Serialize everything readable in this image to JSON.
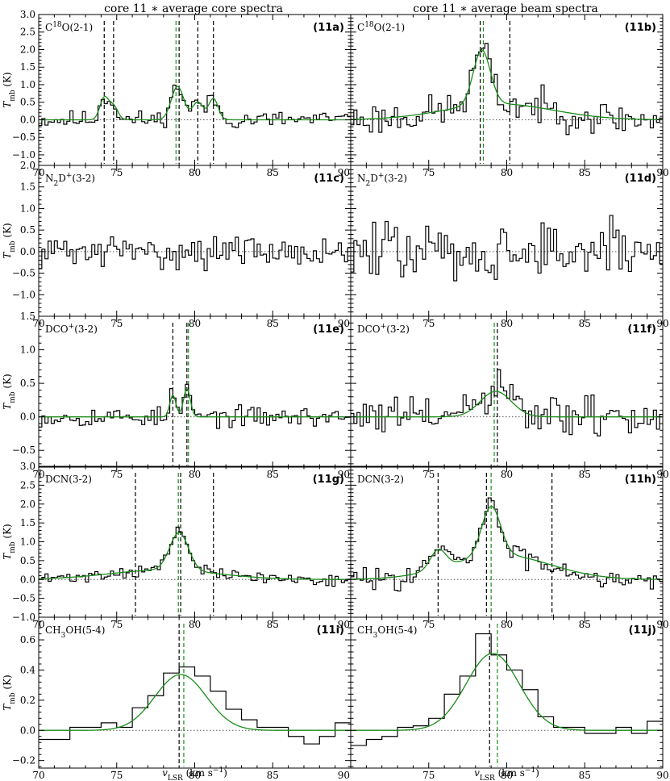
{
  "figure": {
    "column_titles": [
      "core 11 ∗  average core spectra",
      "core 11 ∗  average beam spectra"
    ],
    "ylabel_main": "T",
    "ylabel_sub": "mb",
    "ylabel_unit": " (K)",
    "xlabel_main": "v",
    "xlabel_sub": "LSR",
    "xlabel_unit": " (km s",
    "xlabel_sup": "−1",
    "xlabel_close": ")"
  },
  "colors": {
    "data": "#000000",
    "fit": "#1a8c1a",
    "guide_black": "#000000",
    "guide_green": "#1a8c1a",
    "zero": "#555555"
  },
  "chart_data": [
    {
      "type": "line",
      "tag": "(11a)",
      "molecule_html": "C<sup>18</sup>O(2-1)",
      "molecule_parts": [
        "C",
        "18",
        "O(2-1)"
      ],
      "molecule_styles": [
        "n",
        "sup",
        "n"
      ],
      "xlim": [
        70,
        90
      ],
      "ylim": [
        -1.3,
        3.0
      ],
      "yticks": [
        -1.0,
        -0.5,
        0.0,
        0.5,
        1.0,
        1.5,
        2.0,
        2.5,
        3.0
      ],
      "ytick_labels": [
        "−1.0",
        "−0.5",
        "0.0",
        "0.5",
        "1.0",
        "1.5",
        "2.0",
        "2.5",
        "3.0"
      ],
      "xticks": [
        70,
        75,
        80,
        85,
        90
      ],
      "xtick_labels": [
        "70",
        "75",
        "80",
        "85",
        "90"
      ],
      "vlines_black": [
        74.2,
        74.8,
        79.0,
        80.2,
        81.2
      ],
      "vlines_green": [
        78.8
      ],
      "peaks": [
        [
          74.2,
          0.62,
          0.28
        ],
        [
          74.8,
          0.38,
          0.28
        ],
        [
          78.9,
          0.95,
          0.4
        ],
        [
          80.2,
          0.5,
          0.35
        ],
        [
          81.2,
          0.6,
          0.3
        ]
      ],
      "broad": null,
      "noise": 0.16,
      "step": 0.2,
      "seed": 11
    },
    {
      "type": "line",
      "tag": "(11b)",
      "molecule_html": "C<sup>18</sup>O(2-1)",
      "molecule_parts": [
        "C",
        "18",
        "O(2-1)"
      ],
      "molecule_styles": [
        "n",
        "sup",
        "n"
      ],
      "xlim": [
        70,
        90
      ],
      "ylim": [
        -1.3,
        3.0
      ],
      "yticks": [
        -1.0,
        -0.5,
        0.0,
        0.5,
        1.0,
        1.5,
        2.0,
        2.5,
        3.0
      ],
      "ytick_labels": [
        "−1.0",
        "−0.5",
        "0.0",
        "0.5",
        "1.0",
        "1.5",
        "2.0",
        "2.5",
        "3.0"
      ],
      "xticks": [
        70,
        75,
        80,
        85,
        90
      ],
      "xtick_labels": [
        "",
        "75",
        "80",
        "85",
        "90"
      ],
      "vlines_black": [
        78.3,
        80.2
      ],
      "vlines_green": [
        78.5
      ],
      "peaks": [
        [
          78.4,
          1.55,
          0.55
        ]
      ],
      "broad": [
        79.5,
        0.45,
        3.5
      ],
      "noise": 0.3,
      "step": 0.2,
      "seed": 23
    },
    {
      "type": "line",
      "tag": "(11c)",
      "molecule_html": "N<sub>2</sub>D<sup>+</sup>(3-2)",
      "molecule_parts": [
        "N",
        "2",
        "D",
        "+",
        "(3-2)"
      ],
      "molecule_styles": [
        "n",
        "sub",
        "n",
        "sup",
        "n"
      ],
      "xlim": [
        70,
        90
      ],
      "ylim": [
        -1.5,
        2.0
      ],
      "yticks": [
        -1.0,
        -0.5,
        0.0,
        0.5,
        1.0,
        1.5,
        2.0
      ],
      "ytick_labels": [
        "−1.0",
        "−0.5",
        "0.0",
        "0.5",
        "1.0",
        "1.5",
        "2.0"
      ],
      "xticks": [
        70,
        75,
        80,
        85,
        90
      ],
      "xtick_labels": [
        "70",
        "75",
        "80",
        "85",
        "90"
      ],
      "vlines_black": [],
      "vlines_green": [],
      "peaks": [],
      "broad": null,
      "noise": 0.22,
      "step": 0.2,
      "seed": 31
    },
    {
      "type": "line",
      "tag": "(11d)",
      "molecule_html": "N<sub>2</sub>D<sup>+</sup>(3-2)",
      "molecule_parts": [
        "N",
        "2",
        "D",
        "+",
        "(3-2)"
      ],
      "molecule_styles": [
        "n",
        "sub",
        "n",
        "sup",
        "n"
      ],
      "xlim": [
        70,
        90
      ],
      "ylim": [
        -1.5,
        2.0
      ],
      "yticks": [
        -1.0,
        -0.5,
        0.0,
        0.5,
        1.0,
        1.5,
        2.0
      ],
      "ytick_labels": [
        "−1.0",
        "−0.5",
        "0.0",
        "0.5",
        "1.0",
        "1.5",
        "2.0"
      ],
      "xticks": [
        70,
        75,
        80,
        85,
        90
      ],
      "xtick_labels": [
        "",
        "75",
        "80",
        "85",
        "90"
      ],
      "vlines_black": [],
      "vlines_green": [],
      "peaks": [],
      "broad": null,
      "noise": 0.42,
      "step": 0.2,
      "seed": 47
    },
    {
      "type": "line",
      "tag": "(11e)",
      "molecule_html": "DCO<sup>+</sup>(3-2)",
      "molecule_parts": [
        "DCO",
        "+",
        "(3-2)"
      ],
      "molecule_styles": [
        "n",
        "sup",
        "n"
      ],
      "xlim": [
        70,
        90
      ],
      "ylim": [
        -0.75,
        1.5
      ],
      "yticks": [
        -0.5,
        0.0,
        0.5,
        1.0,
        1.5
      ],
      "ytick_labels": [
        "−0.5",
        "0.0",
        "0.5",
        "1.0",
        "1.5"
      ],
      "xticks": [
        70,
        75,
        80,
        85,
        90
      ],
      "xtick_labels": [
        "70",
        "75",
        "80",
        "85",
        "90"
      ],
      "vlines_black": [
        78.6,
        79.5
      ],
      "vlines_green": [
        79.6
      ],
      "peaks": [
        [
          78.6,
          0.32,
          0.2
        ],
        [
          79.5,
          0.42,
          0.22
        ]
      ],
      "broad": null,
      "noise": 0.09,
      "step": 0.2,
      "seed": 53
    },
    {
      "type": "line",
      "tag": "(11f)",
      "molecule_html": "DCO<sup>+</sup>(3-2)",
      "molecule_parts": [
        "DCO",
        "+",
        "(3-2)"
      ],
      "molecule_styles": [
        "n",
        "sup",
        "n"
      ],
      "xlim": [
        70,
        90
      ],
      "ylim": [
        -0.75,
        1.5
      ],
      "yticks": [
        -0.5,
        0.0,
        0.5,
        1.0,
        1.5
      ],
      "ytick_labels": [
        "−0.5",
        "0.0",
        "0.5",
        "1.0",
        "1.5"
      ],
      "xticks": [
        70,
        75,
        80,
        85,
        90
      ],
      "xtick_labels": [
        "",
        "75",
        "80",
        "85",
        "90"
      ],
      "vlines_black": [
        79.4
      ],
      "vlines_green": [
        79.2
      ],
      "peaks": [
        [
          79.3,
          0.38,
          1.0
        ]
      ],
      "broad": null,
      "noise": 0.2,
      "step": 0.2,
      "seed": 61
    },
    {
      "type": "line",
      "tag": "(11g)",
      "molecule_html": "DCN(3-2)",
      "molecule_parts": [
        "DCN(3-2)"
      ],
      "molecule_styles": [
        "n"
      ],
      "xlim": [
        70,
        90
      ],
      "ylim": [
        -1.0,
        3.0
      ],
      "yticks": [
        -1.0,
        -0.5,
        0.0,
        0.5,
        1.0,
        1.5,
        2.0,
        2.5,
        3.0
      ],
      "ytick_labels": [
        "−1.0",
        "−0.5",
        "0.0",
        "0.5",
        "1.0",
        "1.5",
        "2.0",
        "2.5",
        "3.0"
      ],
      "xticks": [
        70,
        75,
        80,
        85,
        90
      ],
      "xtick_labels": [
        "70",
        "75",
        "80",
        "85",
        "90"
      ],
      "vlines_black": [
        76.2,
        79.1,
        81.2
      ],
      "vlines_green": [
        78.95
      ],
      "peaks": [
        [
          79.0,
          1.0,
          0.6
        ]
      ],
      "broad": [
        78.0,
        0.25,
        3.5
      ],
      "noise": 0.1,
      "step": 0.2,
      "seed": 71
    },
    {
      "type": "line",
      "tag": "(11h)",
      "molecule_html": "DCN(3-2)",
      "molecule_parts": [
        "DCN(3-2)"
      ],
      "molecule_styles": [
        "n"
      ],
      "xlim": [
        70,
        90
      ],
      "ylim": [
        -1.0,
        3.0
      ],
      "yticks": [
        -1.0,
        -0.5,
        0.0,
        0.5,
        1.0,
        1.5,
        2.0,
        2.5,
        3.0
      ],
      "ytick_labels": [
        "−1.0",
        "−0.5",
        "0.0",
        "0.5",
        "1.0",
        "1.5",
        "2.0",
        "2.5",
        "3.0"
      ],
      "xticks": [
        70,
        75,
        80,
        85,
        90
      ],
      "xtick_labels": [
        "",
        "75",
        "80",
        "85",
        "90"
      ],
      "vlines_black": [
        75.6,
        78.7,
        82.9
      ],
      "vlines_green": [
        79.0
      ],
      "peaks": [
        [
          79.0,
          1.3,
          0.6
        ],
        [
          75.6,
          0.5,
          0.5
        ]
      ],
      "broad": [
        79.6,
        0.65,
        3.2
      ],
      "noise": 0.18,
      "step": 0.2,
      "seed": 83
    },
    {
      "type": "line",
      "tag": "(11i)",
      "molecule_html": "CH<sub>3</sub>OH(5-4)",
      "molecule_parts": [
        "CH",
        "3",
        "OH(5-4)"
      ],
      "molecule_styles": [
        "n",
        "sub",
        "n"
      ],
      "xlim": [
        70,
        90
      ],
      "ylim": [
        -0.25,
        0.75
      ],
      "yticks": [
        -0.2,
        0.0,
        0.2,
        0.4,
        0.6
      ],
      "ytick_labels": [
        "−0.2",
        "0.0",
        "0.2",
        "0.4",
        "0.6"
      ],
      "xticks": [
        70,
        75,
        80,
        85,
        90
      ],
      "xtick_labels": [
        "70",
        "75",
        "80",
        "85",
        "90"
      ],
      "vlines_black": [
        79.0
      ],
      "vlines_green": [
        79.3
      ],
      "peaks": [
        [
          79.1,
          0.37,
          1.65
        ]
      ],
      "broad": null,
      "noise": 0.0,
      "step": 1.0,
      "seed": 97,
      "hist": [
        -0.06,
        -0.06,
        0.02,
        0.02,
        0.05,
        0.02,
        0.15,
        0.23,
        0.38,
        0.42,
        0.36,
        0.26,
        0.14,
        0.07,
        0.02,
        0.02,
        -0.04,
        -0.09,
        -0.04,
        0.05
      ]
    },
    {
      "type": "line",
      "tag": "(11j)",
      "molecule_html": "CH<sub>3</sub>OH(5-4)",
      "molecule_parts": [
        "CH",
        "3",
        "OH(5-4)"
      ],
      "molecule_styles": [
        "n",
        "sub",
        "n"
      ],
      "xlim": [
        70,
        90
      ],
      "ylim": [
        -0.25,
        0.75
      ],
      "yticks": [
        -0.2,
        0.0,
        0.2,
        0.4,
        0.6
      ],
      "ytick_labels": [
        "−0.2",
        "0.0",
        "0.2",
        "0.4",
        "0.6"
      ],
      "xticks": [
        70,
        75,
        80,
        85,
        90
      ],
      "xtick_labels": [
        "",
        "75",
        "80",
        "85",
        "90"
      ],
      "vlines_black": [
        78.9
      ],
      "vlines_green": [
        79.4
      ],
      "peaks": [
        [
          79.1,
          0.51,
          1.7
        ]
      ],
      "broad": null,
      "noise": 0.0,
      "step": 1.0,
      "seed": 101,
      "hist": [
        -0.1,
        -0.06,
        -0.04,
        0.02,
        0.03,
        0.08,
        0.24,
        0.36,
        0.64,
        0.5,
        0.4,
        0.27,
        0.09,
        0.02,
        0.02,
        -0.02,
        -0.02,
        0.02,
        -0.02,
        0.06
      ]
    }
  ]
}
